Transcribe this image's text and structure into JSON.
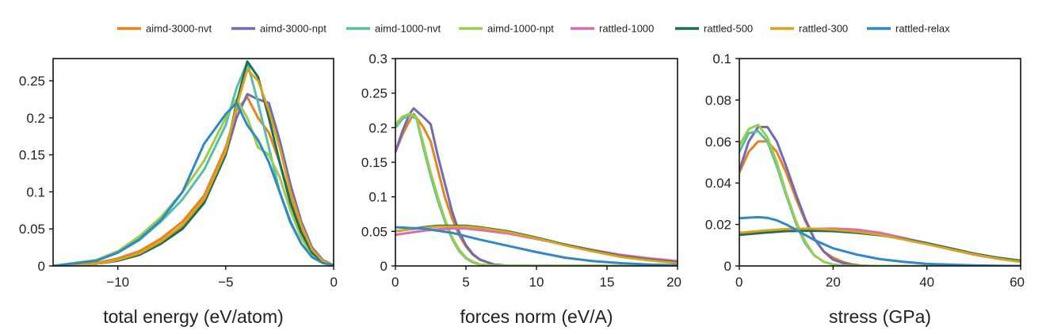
{
  "legend": [
    {
      "name": "aimd-3000-nvt",
      "color": "#e8821e"
    },
    {
      "name": "aimd-3000-npt",
      "color": "#6f6bb5"
    },
    {
      "name": "aimd-1000-nvt",
      "color": "#58bfa3"
    },
    {
      "name": "aimd-1000-npt",
      "color": "#9acd4c"
    },
    {
      "name": "rattled-1000",
      "color": "#d46db5"
    },
    {
      "name": "rattled-500",
      "color": "#1f6e55"
    },
    {
      "name": "rattled-300",
      "color": "#d9a322"
    },
    {
      "name": "rattled-relax",
      "color": "#2f8ac3"
    }
  ],
  "chart_data": [
    {
      "type": "line",
      "xlabel": "total energy (eV/atom)",
      "ylabel": "",
      "xlim": [
        -13,
        0
      ],
      "ylim": [
        0,
        0.28
      ],
      "xticks": [
        {
          "v": -10,
          "label": "−10"
        },
        {
          "v": -5,
          "label": "−5"
        },
        {
          "v": 0,
          "label": "0"
        }
      ],
      "yticks": [
        {
          "v": 0,
          "label": "0"
        },
        {
          "v": 0.05,
          "label": "0.05"
        },
        {
          "v": 0.1,
          "label": "0.1"
        },
        {
          "v": 0.15,
          "label": "0.15"
        },
        {
          "v": 0.2,
          "label": "0.2"
        },
        {
          "v": 0.25,
          "label": "0.25"
        }
      ],
      "series": [
        {
          "name": "aimd-3000-nvt",
          "color": "#e8821e",
          "x": [
            -13,
            -11,
            -10,
            -9,
            -8,
            -7,
            -6,
            -5,
            -4.5,
            -4,
            -3.5,
            -3,
            -2.5,
            -2,
            -1.5,
            -1,
            -0.5,
            0
          ],
          "y": [
            0,
            0.004,
            0.01,
            0.02,
            0.037,
            0.06,
            0.095,
            0.16,
            0.21,
            0.228,
            0.2,
            0.18,
            0.14,
            0.09,
            0.05,
            0.022,
            0.007,
            0.001
          ]
        },
        {
          "name": "aimd-3000-npt",
          "color": "#6f6bb5",
          "x": [
            -13,
            -11,
            -10,
            -9,
            -8,
            -7,
            -6,
            -5,
            -4.5,
            -4,
            -3.5,
            -3,
            -2.5,
            -2,
            -1.5,
            -1,
            -0.5,
            0
          ],
          "y": [
            0,
            0.003,
            0.008,
            0.017,
            0.032,
            0.052,
            0.085,
            0.15,
            0.2,
            0.232,
            0.225,
            0.22,
            0.17,
            0.11,
            0.06,
            0.025,
            0.008,
            0.001
          ]
        },
        {
          "name": "aimd-1000-nvt",
          "color": "#58bfa3",
          "x": [
            -13,
            -11,
            -10,
            -9,
            -8,
            -7,
            -6,
            -5,
            -4.5,
            -4,
            -3.5,
            -3,
            -2.5,
            -2,
            -1.5,
            -1,
            -0.5,
            0
          ],
          "y": [
            0,
            0.007,
            0.018,
            0.035,
            0.06,
            0.09,
            0.13,
            0.19,
            0.24,
            0.275,
            0.22,
            0.16,
            0.1,
            0.058,
            0.03,
            0.012,
            0.004,
            0.001
          ]
        },
        {
          "name": "aimd-1000-npt",
          "color": "#9acd4c",
          "x": [
            -13,
            -11,
            -10,
            -9,
            -8,
            -7,
            -6,
            -5,
            -4.5,
            -4,
            -3.5,
            -3,
            -2.5,
            -2,
            -1.5,
            -1,
            -0.5,
            0
          ],
          "y": [
            0,
            0.008,
            0.02,
            0.04,
            0.066,
            0.1,
            0.142,
            0.2,
            0.225,
            0.2,
            0.16,
            0.15,
            0.12,
            0.075,
            0.038,
            0.015,
            0.005,
            0.001
          ]
        },
        {
          "name": "rattled-500",
          "color": "#1f6e55",
          "x": [
            -13,
            -11,
            -10,
            -9,
            -8,
            -7,
            -6,
            -5,
            -4.5,
            -4,
            -3.5,
            -3,
            -2.5,
            -2,
            -1.5,
            -1,
            -0.5,
            0
          ],
          "y": [
            0,
            0.003,
            0.007,
            0.015,
            0.03,
            0.05,
            0.085,
            0.15,
            0.22,
            0.276,
            0.255,
            0.2,
            0.14,
            0.085,
            0.045,
            0.018,
            0.006,
            0.001
          ]
        },
        {
          "name": "rattled-300",
          "color": "#d9a322",
          "x": [
            -13,
            -11,
            -10,
            -9,
            -8,
            -7,
            -6,
            -5,
            -4.5,
            -4,
            -3.5,
            -3,
            -2.5,
            -2,
            -1.5,
            -1,
            -0.5,
            0
          ],
          "y": [
            0,
            0.003,
            0.008,
            0.017,
            0.033,
            0.055,
            0.09,
            0.155,
            0.215,
            0.265,
            0.25,
            0.21,
            0.16,
            0.1,
            0.055,
            0.022,
            0.007,
            0.001
          ]
        },
        {
          "name": "rattled-relax",
          "color": "#2f8ac3",
          "x": [
            -13,
            -11,
            -10,
            -9,
            -8,
            -7,
            -6,
            -5,
            -4.5,
            -4,
            -3.5,
            -3,
            -2.5,
            -2,
            -1.5,
            -1,
            -0.5,
            0
          ],
          "y": [
            0,
            0.007,
            0.018,
            0.036,
            0.062,
            0.1,
            0.165,
            0.205,
            0.22,
            0.19,
            0.17,
            0.14,
            0.1,
            0.06,
            0.03,
            0.012,
            0.004,
            0.001
          ]
        }
      ]
    },
    {
      "type": "line",
      "xlabel": "forces norm (eV/A)",
      "ylabel": "",
      "xlim": [
        0,
        20
      ],
      "ylim": [
        0,
        0.3
      ],
      "xticks": [
        {
          "v": 0,
          "label": "0"
        },
        {
          "v": 5,
          "label": "5"
        },
        {
          "v": 10,
          "label": "10"
        },
        {
          "v": 15,
          "label": "15"
        },
        {
          "v": 20,
          "label": "20"
        }
      ],
      "yticks": [
        {
          "v": 0,
          "label": "0"
        },
        {
          "v": 0.05,
          "label": "0.05"
        },
        {
          "v": 0.1,
          "label": "0.1"
        },
        {
          "v": 0.15,
          "label": "0.15"
        },
        {
          "v": 0.2,
          "label": "0.2"
        },
        {
          "v": 0.25,
          "label": "0.25"
        },
        {
          "v": 0.3,
          "label": "0.3"
        }
      ],
      "series": [
        {
          "name": "aimd-3000-nvt",
          "color": "#e8821e",
          "x": [
            0,
            0.5,
            1,
            1.3,
            2,
            2.5,
            3,
            3.5,
            4,
            4.5,
            5,
            5.5,
            6,
            7,
            8,
            20
          ],
          "y": [
            0.165,
            0.19,
            0.21,
            0.22,
            0.2,
            0.18,
            0.14,
            0.1,
            0.07,
            0.045,
            0.028,
            0.016,
            0.009,
            0.002,
            0.0003,
            0
          ]
        },
        {
          "name": "aimd-3000-npt",
          "color": "#6f6bb5",
          "x": [
            0,
            0.5,
            1,
            1.3,
            2,
            2.5,
            3,
            3.5,
            4,
            4.5,
            5,
            5.5,
            6,
            7,
            8,
            20
          ],
          "y": [
            0.165,
            0.195,
            0.22,
            0.228,
            0.215,
            0.205,
            0.16,
            0.12,
            0.08,
            0.05,
            0.03,
            0.017,
            0.009,
            0.002,
            0.0003,
            0
          ]
        },
        {
          "name": "aimd-1000-nvt",
          "color": "#58bfa3",
          "x": [
            0,
            0.5,
            1,
            1.5,
            2,
            2.5,
            3,
            3.5,
            4,
            4.5,
            5,
            5.5,
            6,
            7,
            20
          ],
          "y": [
            0.2,
            0.213,
            0.218,
            0.213,
            0.17,
            0.13,
            0.095,
            0.065,
            0.04,
            0.022,
            0.011,
            0.005,
            0.002,
            0.0002,
            0
          ]
        },
        {
          "name": "aimd-1000-npt",
          "color": "#9acd4c",
          "x": [
            0,
            0.5,
            1,
            1.5,
            2,
            2.5,
            3,
            3.5,
            4,
            4.5,
            5,
            5.5,
            6,
            7,
            20
          ],
          "y": [
            0.205,
            0.216,
            0.22,
            0.215,
            0.175,
            0.135,
            0.1,
            0.068,
            0.042,
            0.024,
            0.012,
            0.006,
            0.002,
            0.0002,
            0
          ]
        },
        {
          "name": "rattled-1000",
          "color": "#d46db5",
          "x": [
            0,
            1,
            2,
            3,
            4,
            5,
            6,
            8,
            10,
            12,
            14,
            16,
            18,
            20
          ],
          "y": [
            0.045,
            0.048,
            0.051,
            0.053,
            0.054,
            0.054,
            0.052,
            0.047,
            0.039,
            0.031,
            0.023,
            0.016,
            0.011,
            0.007
          ]
        },
        {
          "name": "rattled-500",
          "color": "#1f6e55",
          "x": [
            0,
            1,
            2,
            3,
            4,
            5,
            6,
            8,
            10,
            12,
            14,
            16,
            18,
            20
          ],
          "y": [
            0.05,
            0.053,
            0.056,
            0.058,
            0.058,
            0.058,
            0.056,
            0.05,
            0.041,
            0.031,
            0.022,
            0.014,
            0.009,
            0.005
          ]
        },
        {
          "name": "rattled-300",
          "color": "#d9a322",
          "x": [
            0,
            1,
            2,
            3,
            4,
            5,
            6,
            8,
            10,
            12,
            14,
            16,
            18,
            20
          ],
          "y": [
            0.05,
            0.053,
            0.055,
            0.057,
            0.057,
            0.057,
            0.055,
            0.049,
            0.04,
            0.03,
            0.021,
            0.013,
            0.008,
            0.004
          ]
        },
        {
          "name": "rattled-relax",
          "color": "#2f8ac3",
          "x": [
            0,
            1,
            2,
            3,
            4,
            5,
            6,
            8,
            10,
            12,
            14,
            16,
            18,
            20
          ],
          "y": [
            0.056,
            0.055,
            0.054,
            0.051,
            0.048,
            0.043,
            0.038,
            0.029,
            0.02,
            0.012,
            0.007,
            0.004,
            0.002,
            0.001
          ]
        }
      ]
    },
    {
      "type": "line",
      "xlabel": "stress (GPa)",
      "ylabel": "",
      "xlim": [
        0,
        60
      ],
      "ylim": [
        0,
        0.1
      ],
      "xticks": [
        {
          "v": 0,
          "label": "0"
        },
        {
          "v": 20,
          "label": "20"
        },
        {
          "v": 40,
          "label": "40"
        },
        {
          "v": 60,
          "label": "60"
        }
      ],
      "yticks": [
        {
          "v": 0,
          "label": "0"
        },
        {
          "v": 0.02,
          "label": "0.02"
        },
        {
          "v": 0.04,
          "label": "0.04"
        },
        {
          "v": 0.06,
          "label": "0.06"
        },
        {
          "v": 0.08,
          "label": "0.08"
        },
        {
          "v": 0.1,
          "label": "0.1"
        }
      ],
      "series": [
        {
          "name": "aimd-3000-nvt",
          "color": "#e8821e",
          "x": [
            0,
            2,
            4,
            6,
            8,
            10,
            12,
            14,
            16,
            18,
            20,
            22,
            24,
            26,
            28,
            60
          ],
          "y": [
            0.045,
            0.055,
            0.06,
            0.06,
            0.055,
            0.045,
            0.033,
            0.022,
            0.013,
            0.007,
            0.004,
            0.002,
            0.0008,
            0.0002,
            0,
            0
          ]
        },
        {
          "name": "aimd-3000-npt",
          "color": "#6f6bb5",
          "x": [
            0,
            2,
            4,
            6,
            8,
            10,
            12,
            14,
            16,
            18,
            20,
            22,
            24,
            26,
            28,
            60
          ],
          "y": [
            0.046,
            0.06,
            0.067,
            0.067,
            0.06,
            0.048,
            0.035,
            0.023,
            0.013,
            0.007,
            0.003,
            0.0015,
            0.0005,
            0.0001,
            0,
            0
          ]
        },
        {
          "name": "aimd-1000-nvt",
          "color": "#58bfa3",
          "x": [
            0,
            2,
            4,
            6,
            8,
            10,
            12,
            14,
            16,
            18,
            20,
            22,
            24,
            60
          ],
          "y": [
            0.055,
            0.064,
            0.065,
            0.06,
            0.048,
            0.034,
            0.021,
            0.011,
            0.005,
            0.002,
            0.0007,
            0.0002,
            0,
            0
          ]
        },
        {
          "name": "aimd-1000-npt",
          "color": "#9acd4c",
          "x": [
            0,
            2,
            4,
            6,
            8,
            10,
            12,
            14,
            16,
            18,
            20,
            22,
            24,
            60
          ],
          "y": [
            0.058,
            0.066,
            0.068,
            0.062,
            0.05,
            0.035,
            0.022,
            0.012,
            0.005,
            0.002,
            0.0007,
            0.0002,
            0,
            0
          ]
        },
        {
          "name": "rattled-1000",
          "color": "#d46db5",
          "x": [
            0,
            5,
            10,
            15,
            20,
            25,
            30,
            35,
            40,
            45,
            50,
            55,
            60
          ],
          "y": [
            0.015,
            0.016,
            0.017,
            0.0178,
            0.018,
            0.0175,
            0.016,
            0.0135,
            0.011,
            0.008,
            0.0055,
            0.0035,
            0.002
          ]
        },
        {
          "name": "rattled-500",
          "color": "#1f6e55",
          "x": [
            0,
            5,
            10,
            15,
            20,
            25,
            30,
            35,
            40,
            45,
            50,
            55,
            60
          ],
          "y": [
            0.015,
            0.016,
            0.0168,
            0.017,
            0.0168,
            0.016,
            0.0148,
            0.013,
            0.011,
            0.0085,
            0.006,
            0.004,
            0.0025
          ]
        },
        {
          "name": "rattled-300",
          "color": "#d9a322",
          "x": [
            0,
            5,
            10,
            15,
            20,
            25,
            30,
            35,
            40,
            45,
            50,
            55,
            60
          ],
          "y": [
            0.016,
            0.017,
            0.0178,
            0.018,
            0.0175,
            0.0165,
            0.015,
            0.0128,
            0.0105,
            0.008,
            0.0056,
            0.0036,
            0.002
          ]
        },
        {
          "name": "rattled-relax",
          "color": "#2f8ac3",
          "x": [
            0,
            2,
            4,
            6,
            8,
            10,
            12,
            14,
            16,
            20,
            25,
            30,
            35,
            40,
            45,
            50,
            55,
            60
          ],
          "y": [
            0.023,
            0.0233,
            0.0235,
            0.0232,
            0.022,
            0.02,
            0.0175,
            0.015,
            0.0125,
            0.0085,
            0.0055,
            0.0033,
            0.002,
            0.001,
            0.0006,
            0.0003,
            0.0001,
            0
          ]
        }
      ]
    }
  ]
}
